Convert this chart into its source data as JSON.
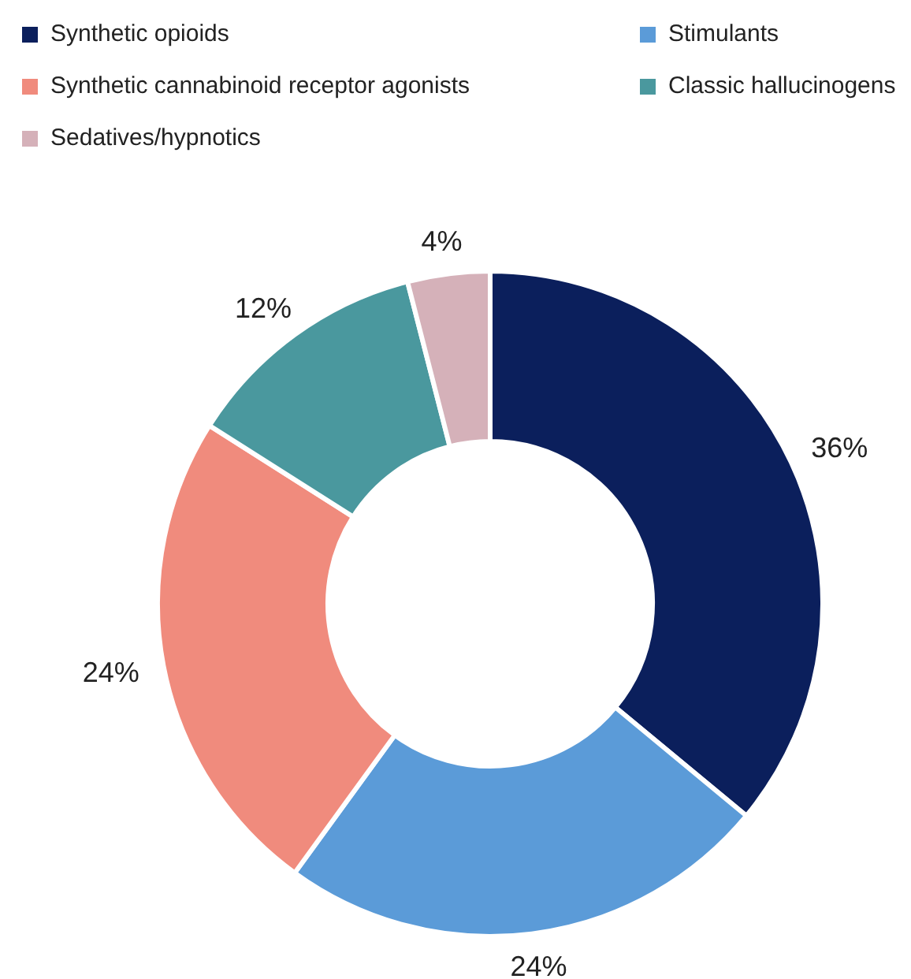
{
  "chart_data": {
    "type": "donut",
    "categories": [
      "Synthetic opioids",
      "Stimulants",
      "Synthetic cannabinoid receptor agonists",
      "Classic hallucinogens",
      "Sedatives/hypnotics"
    ],
    "values": [
      36,
      24,
      24,
      12,
      4
    ],
    "colors": [
      "#0b1f5c",
      "#5b9bd8",
      "#f08b7d",
      "#4a989e",
      "#d5b1b9"
    ],
    "value_labels": [
      "36%",
      "24%",
      "24%",
      "12%",
      "4%"
    ],
    "legend": "top"
  }
}
